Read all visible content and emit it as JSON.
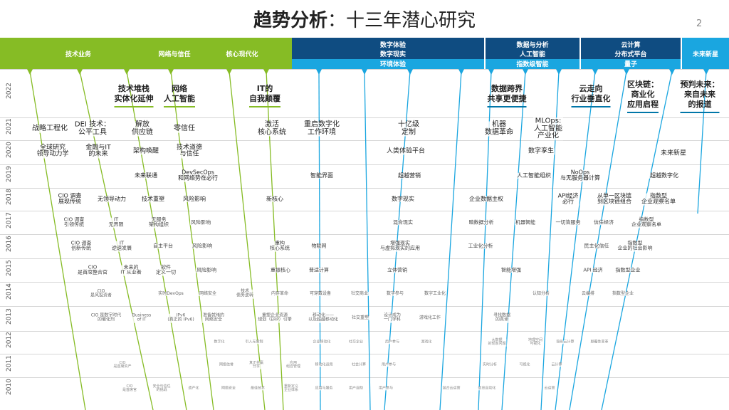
{
  "title_bold": "趋势分析",
  "title_light": "：十三年潜心研究",
  "page_number": "2",
  "colors": {
    "green": "#86bc25",
    "navy": "#0f4c81",
    "blue": "#1a8fd1",
    "lightblue": "#1aa6e0"
  },
  "bands": [
    {
      "label": "技术业务",
      "color": "#86bc25"
    },
    {
      "label": "网络与信任",
      "color": "#86bc25"
    },
    {
      "label": "核心现代化",
      "color": "#86bc25"
    },
    {
      "label": "数字体验",
      "color": "#0f4c81"
    },
    {
      "label": "数字现实",
      "color": "#0f4c81"
    },
    {
      "label": "环境体验",
      "color": "#1aa6e0"
    },
    {
      "label": "数据与分析",
      "color": "#0f4c81"
    },
    {
      "label": "人工智能",
      "color": "#0f4c81"
    },
    {
      "label": "指数级智能",
      "color": "#1aa6e0"
    },
    {
      "label": "云计算",
      "color": "#0f4c81"
    },
    {
      "label": "分布式平台",
      "color": "#0f4c81"
    },
    {
      "label": "量子",
      "color": "#1aa6e0"
    },
    {
      "label": "未来新星",
      "color": "#1aa6e0"
    }
  ],
  "years": [
    "2022",
    "2021",
    "2020",
    "2019",
    "2018",
    "2017",
    "2016",
    "2015",
    "2014",
    "2013",
    "2012",
    "2011",
    "2010"
  ],
  "headlines": [
    {
      "text": "技术堆栈\n实体化延伸",
      "color": "green"
    },
    {
      "text": "网络\n人工智能",
      "color": "green"
    },
    {
      "text": "IT的\n自我颠覆",
      "color": "green"
    },
    {
      "text": "数据跨界\n共享更便捷",
      "color": "blue"
    },
    {
      "text": "云走向\n行业垂直化",
      "color": "blue"
    },
    {
      "text": "区块链：\n商业化\n应用启程",
      "color": "blue"
    },
    {
      "text": "预判未来：\n来自未来\n的报道",
      "color": "blue"
    }
  ],
  "items": [
    {
      "text": "战略工程化"
    },
    {
      "text": "DEI 技术：\n公平工具"
    },
    {
      "text": "解放\n供应链"
    },
    {
      "text": "零信任"
    },
    {
      "text": "激活\n核心系统"
    },
    {
      "text": "重启数字化\n工作环境"
    },
    {
      "text": "十亿级\n定制"
    },
    {
      "text": "机器\n数据革命"
    },
    {
      "text": "MLOps:\n人工智能\n产业化"
    },
    {
      "text": "全球研究\n领导动力学"
    },
    {
      "text": "金融与IT\n的未来"
    },
    {
      "text": "架构唤醒"
    },
    {
      "text": "技术道德\n与信任"
    },
    {
      "text": "人类体验平台"
    },
    {
      "text": "数字孪生"
    },
    {
      "text": "未来新星"
    },
    {
      "text": "未来联通"
    },
    {
      "text": "DevSecOps\n和网络势在必行"
    },
    {
      "text": "智能界面"
    },
    {
      "text": "超越营销"
    },
    {
      "text": "人工智能组织"
    },
    {
      "text": "NoOps\n与无服务器计算"
    },
    {
      "text": "超越数字化"
    },
    {
      "text": "CIO 调查\n展现传统"
    },
    {
      "text": "无领导动力"
    },
    {
      "text": "技术重塑"
    },
    {
      "text": "风险影响"
    },
    {
      "text": "新核心"
    },
    {
      "text": "数字现实"
    },
    {
      "text": "企业数据主权"
    },
    {
      "text": "API经济\n必行"
    },
    {
      "text": "从单一区块链\n到区块链组合"
    },
    {
      "text": "指数型\n企业观察名单"
    },
    {
      "text": "CIO 调查\n引领传统"
    },
    {
      "text": "IT\n无界限"
    },
    {
      "text": "无服务\n架构组织"
    },
    {
      "text": "风险影响"
    },
    {
      "text": "混合现实"
    },
    {
      "text": "暗数据分析"
    },
    {
      "text": "机器智能"
    },
    {
      "text": "一切皆服务"
    },
    {
      "text": "信任经济"
    },
    {
      "text": "指数型\n企业观察名单"
    },
    {
      "text": "CIO 调查\n创新传统"
    },
    {
      "text": "IT\n逆速发展"
    },
    {
      "text": "自主平台"
    },
    {
      "text": "风险影响"
    },
    {
      "text": "重构\n核心系统"
    },
    {
      "text": "物联网"
    },
    {
      "text": "增强现实\n与虚拟现实的应用"
    },
    {
      "text": "工业化分析"
    },
    {
      "text": "民主化信任"
    },
    {
      "text": "指数型\n企业的社会影响"
    },
    {
      "text": "CIO\n是首席整合官"
    },
    {
      "text": "未来的\nIT 从业者"
    },
    {
      "text": "软件\n定义一切"
    },
    {
      "text": "风险影响"
    },
    {
      "text": "重振核心"
    },
    {
      "text": "普适计算"
    },
    {
      "text": "立体营销"
    },
    {
      "text": "智能增强"
    },
    {
      "text": "API 经济"
    },
    {
      "text": "指数型企业"
    },
    {
      "text": "CIO\n是风投资者"
    },
    {
      "text": "实时DevOps"
    },
    {
      "text": "网络安全"
    },
    {
      "text": "技术\n债务逆转"
    },
    {
      "text": "内存革命"
    },
    {
      "text": "可穿戴设备"
    },
    {
      "text": "社交商业"
    },
    {
      "text": "数字参与"
    },
    {
      "text": "数字工业化"
    },
    {
      "text": "认知分析"
    },
    {
      "text": "云编排"
    },
    {
      "text": "指数型企业"
    },
    {
      "text": "CIO 是数字时代\n的催化剂"
    },
    {
      "text": "Business\nof IT"
    },
    {
      "text": "IPv6\n(真正的 IPv6)"
    },
    {
      "text": "准备就绪的\n网络安全"
    },
    {
      "text": "重塑企业资源\n规划（ERP）引擎"
    },
    {
      "text": "移动化——\n以及超越移动化"
    },
    {
      "text": "社交重塑"
    },
    {
      "text": "设计成为\n一门学科"
    },
    {
      "text": "游戏化工作"
    },
    {
      "text": "寻找数据\n的真谛"
    },
    {
      "text": "数字化"
    },
    {
      "text": "引入无限制"
    },
    {
      "text": "企业移动化"
    },
    {
      "text": "社交企业"
    },
    {
      "text": "用户参与"
    },
    {
      "text": "游戏化"
    },
    {
      "text": "大数据\n的现象问题"
    },
    {
      "text": "地理空间\n可视化"
    },
    {
      "text": "隐形云计算"
    },
    {
      "text": "颠覆性变革"
    },
    {
      "text": "CIO\n是首席资产"
    },
    {
      "text": "网络信誉"
    },
    {
      "text": "真正共赢\n分享"
    },
    {
      "text": "应用\n组合管理"
    },
    {
      "text": "移动化运用"
    },
    {
      "text": "社会计算"
    },
    {
      "text": "用户参与"
    },
    {
      "text": "实时分析"
    },
    {
      "text": "可视化"
    },
    {
      "text": "云计算"
    },
    {
      "text": "CIO\n是首席官"
    },
    {
      "text": "安全与信任\n的挑战"
    },
    {
      "text": "遗产化"
    },
    {
      "text": "网络安全"
    },
    {
      "text": "最佳技术"
    },
    {
      "text": "重新定义\n企业体系"
    },
    {
      "text": "应用与服务"
    },
    {
      "text": "用户自助"
    },
    {
      "text": "用户参与"
    },
    {
      "text": "混合云运营"
    },
    {
      "text": "信息自动化"
    },
    {
      "text": "云运营"
    }
  ]
}
